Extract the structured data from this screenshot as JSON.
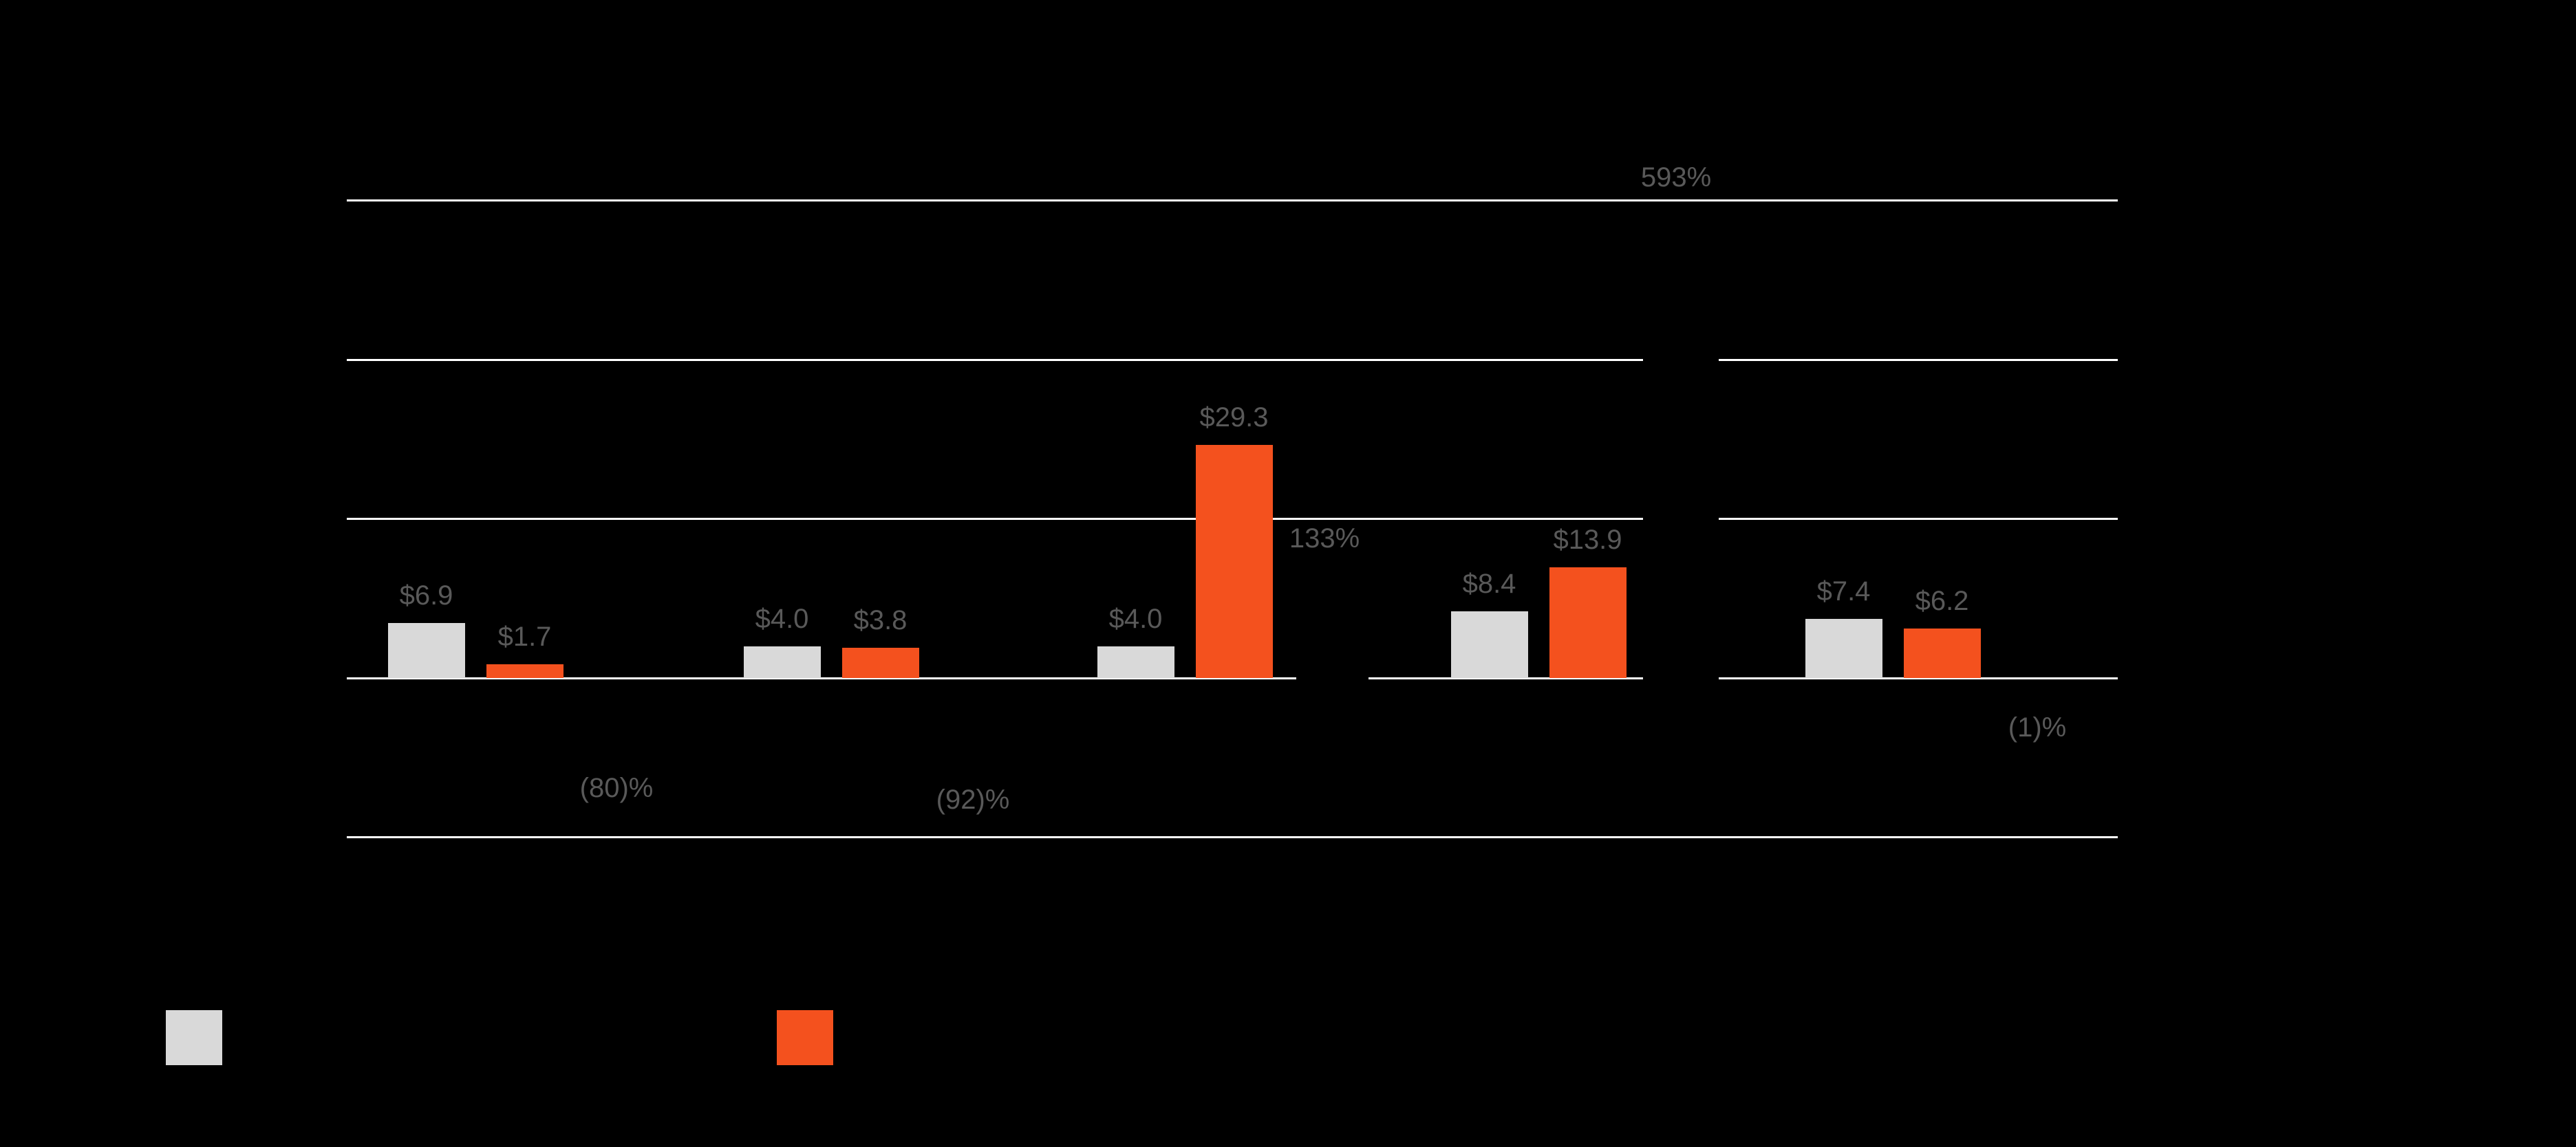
{
  "chart_data": {
    "type": "bar",
    "title": "",
    "background_color": "#000000",
    "gridline_color": "#ffffff",
    "label_color": "#595959",
    "grid": true,
    "legend_position": "bottom-left",
    "ylim": [
      -20,
      60
    ],
    "gridline_values": [
      60,
      40,
      20,
      0,
      -20
    ],
    "categories": [
      "",
      "",
      "",
      "",
      ""
    ],
    "series": [
      {
        "name": "series-1-gray",
        "color": "#d9d9d9",
        "values": [
          6.9,
          4.0,
          4.0,
          8.4,
          7.4
        ],
        "labels": [
          "$6.9",
          "$4.0",
          "$4.0",
          "$8.4",
          "$7.4"
        ]
      },
      {
        "name": "series-2-orange",
        "color": "#f4511e",
        "values": [
          1.7,
          3.8,
          29.3,
          13.9,
          6.2
        ],
        "labels": [
          "$1.7",
          "$3.8",
          "$29.3",
          "$13.9",
          "$6.2"
        ]
      }
    ],
    "change_labels": [
      "(80)%",
      "(92)%",
      "133%",
      "593%",
      "(1)%"
    ],
    "legend": {
      "swatches": [
        {
          "series": "series-1-gray",
          "color": "#d9d9d9"
        },
        {
          "series": "series-2-orange",
          "color": "#f4511e"
        }
      ]
    }
  }
}
